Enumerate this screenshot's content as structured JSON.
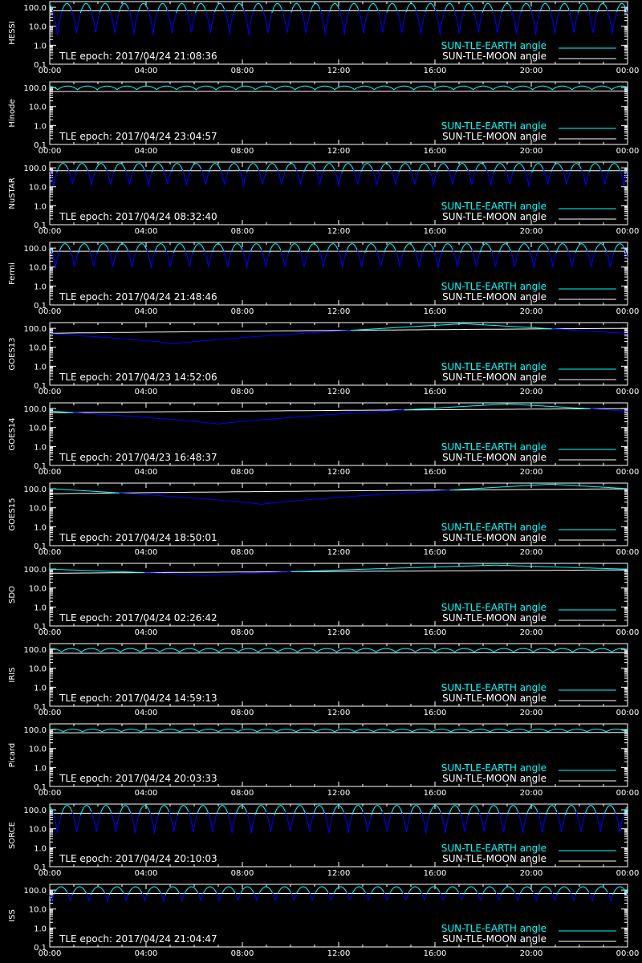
{
  "chart_data": {
    "type": "line",
    "yscale": "log",
    "ylim": [
      0.1,
      200
    ],
    "y_ticks": [
      "100.0",
      "10.0",
      "1.0",
      "0.1"
    ],
    "x_ticks": [
      "00:00",
      "04:00",
      "08:00",
      "12:00",
      "16:00",
      "20:00",
      "00:00"
    ],
    "legend": {
      "position": "bottom-right",
      "entries": [
        {
          "label": "SUN-TLE-EARTH angle",
          "color": "#00ffff"
        },
        {
          "label": "SUN-TLE-MOON angle",
          "color": "#ffffff"
        }
      ]
    },
    "colors": {
      "background": "#000000",
      "axis": "#ffffff",
      "earth": "#00ffff",
      "earth_low": "#0000ff",
      "moon": "#ffffff"
    },
    "panels": [
      {
        "satellite": "HESSI",
        "epoch": "TLE epoch: 2017/04/24 21:08:36",
        "moon": [
          65,
          65
        ],
        "earth": {
          "kind": "orbit",
          "orbits": 15.1,
          "phase": 0.05,
          "max": 160,
          "min": 3
        }
      },
      {
        "satellite": "Hinode",
        "epoch": "TLE epoch: 2017/04/24 23:04:57",
        "moon": [
          62,
          66
        ],
        "earth": {
          "kind": "orbit",
          "orbits": 14.6,
          "phase": 0.55,
          "max": 120,
          "min": 75
        }
      },
      {
        "satellite": "NuSTAR",
        "epoch": "TLE epoch: 2017/04/24 08:32:40",
        "moon": [
          70,
          70
        ],
        "earth": {
          "kind": "orbit",
          "orbits": 15.2,
          "phase": 0.15,
          "max": 170,
          "min": 10
        }
      },
      {
        "satellite": "Fermi",
        "epoch": "TLE epoch: 2017/04/24 21:48:46",
        "moon": [
          68,
          68
        ],
        "earth": {
          "kind": "orbit",
          "orbits": 15.1,
          "phase": 0.1,
          "max": 170,
          "min": 8
        }
      },
      {
        "satellite": "GOES13",
        "epoch": "TLE epoch: 2017/04/23 14:52:06",
        "moon": [
          55,
          100
        ],
        "earth": {
          "kind": "geo",
          "dip_hour": 5.2,
          "min": 15,
          "max": 175
        }
      },
      {
        "satellite": "GOES14",
        "epoch": "TLE epoch: 2017/04/23 16:48:37",
        "moon": [
          60,
          100
        ],
        "earth": {
          "kind": "geo",
          "dip_hour": 7.0,
          "min": 15,
          "max": 175
        }
      },
      {
        "satellite": "GOES15",
        "epoch": "TLE epoch: 2017/04/24 18:50:01",
        "moon": [
          55,
          100
        ],
        "earth": {
          "kind": "geo",
          "dip_hour": 8.8,
          "min": 15,
          "max": 175
        }
      },
      {
        "satellite": "SDO",
        "epoch": "TLE epoch: 2017/04/24 02:26:42",
        "moon": [
          60,
          90
        ],
        "earth": {
          "kind": "geo",
          "dip_hour": 6.5,
          "min": 45,
          "max": 160
        }
      },
      {
        "satellite": "IRIS",
        "epoch": "TLE epoch: 2017/04/24 14:59:13",
        "moon": [
          62,
          66
        ],
        "earth": {
          "kind": "orbit",
          "orbits": 14.7,
          "phase": 0.45,
          "max": 110,
          "min": 70
        }
      },
      {
        "satellite": "Picard",
        "epoch": "TLE epoch: 2017/04/24 20:03:33",
        "moon": [
          68,
          70
        ],
        "earth": {
          "kind": "orbit",
          "orbits": 14.9,
          "phase": 0.4,
          "max": 105,
          "min": 75
        }
      },
      {
        "satellite": "SORCE",
        "epoch": "TLE epoch: 2017/04/24 20:10:03",
        "moon": [
          66,
          66
        ],
        "earth": {
          "kind": "orbit",
          "orbits": 14.9,
          "phase": 0.05,
          "max": 170,
          "min": 5
        }
      },
      {
        "satellite": "ISS",
        "epoch": "TLE epoch: 2017/04/24 21:04:47",
        "moon": [
          65,
          65
        ],
        "earth": {
          "kind": "orbit",
          "orbits": 15.5,
          "phase": 0.2,
          "max": 150,
          "min": 25
        }
      }
    ]
  }
}
